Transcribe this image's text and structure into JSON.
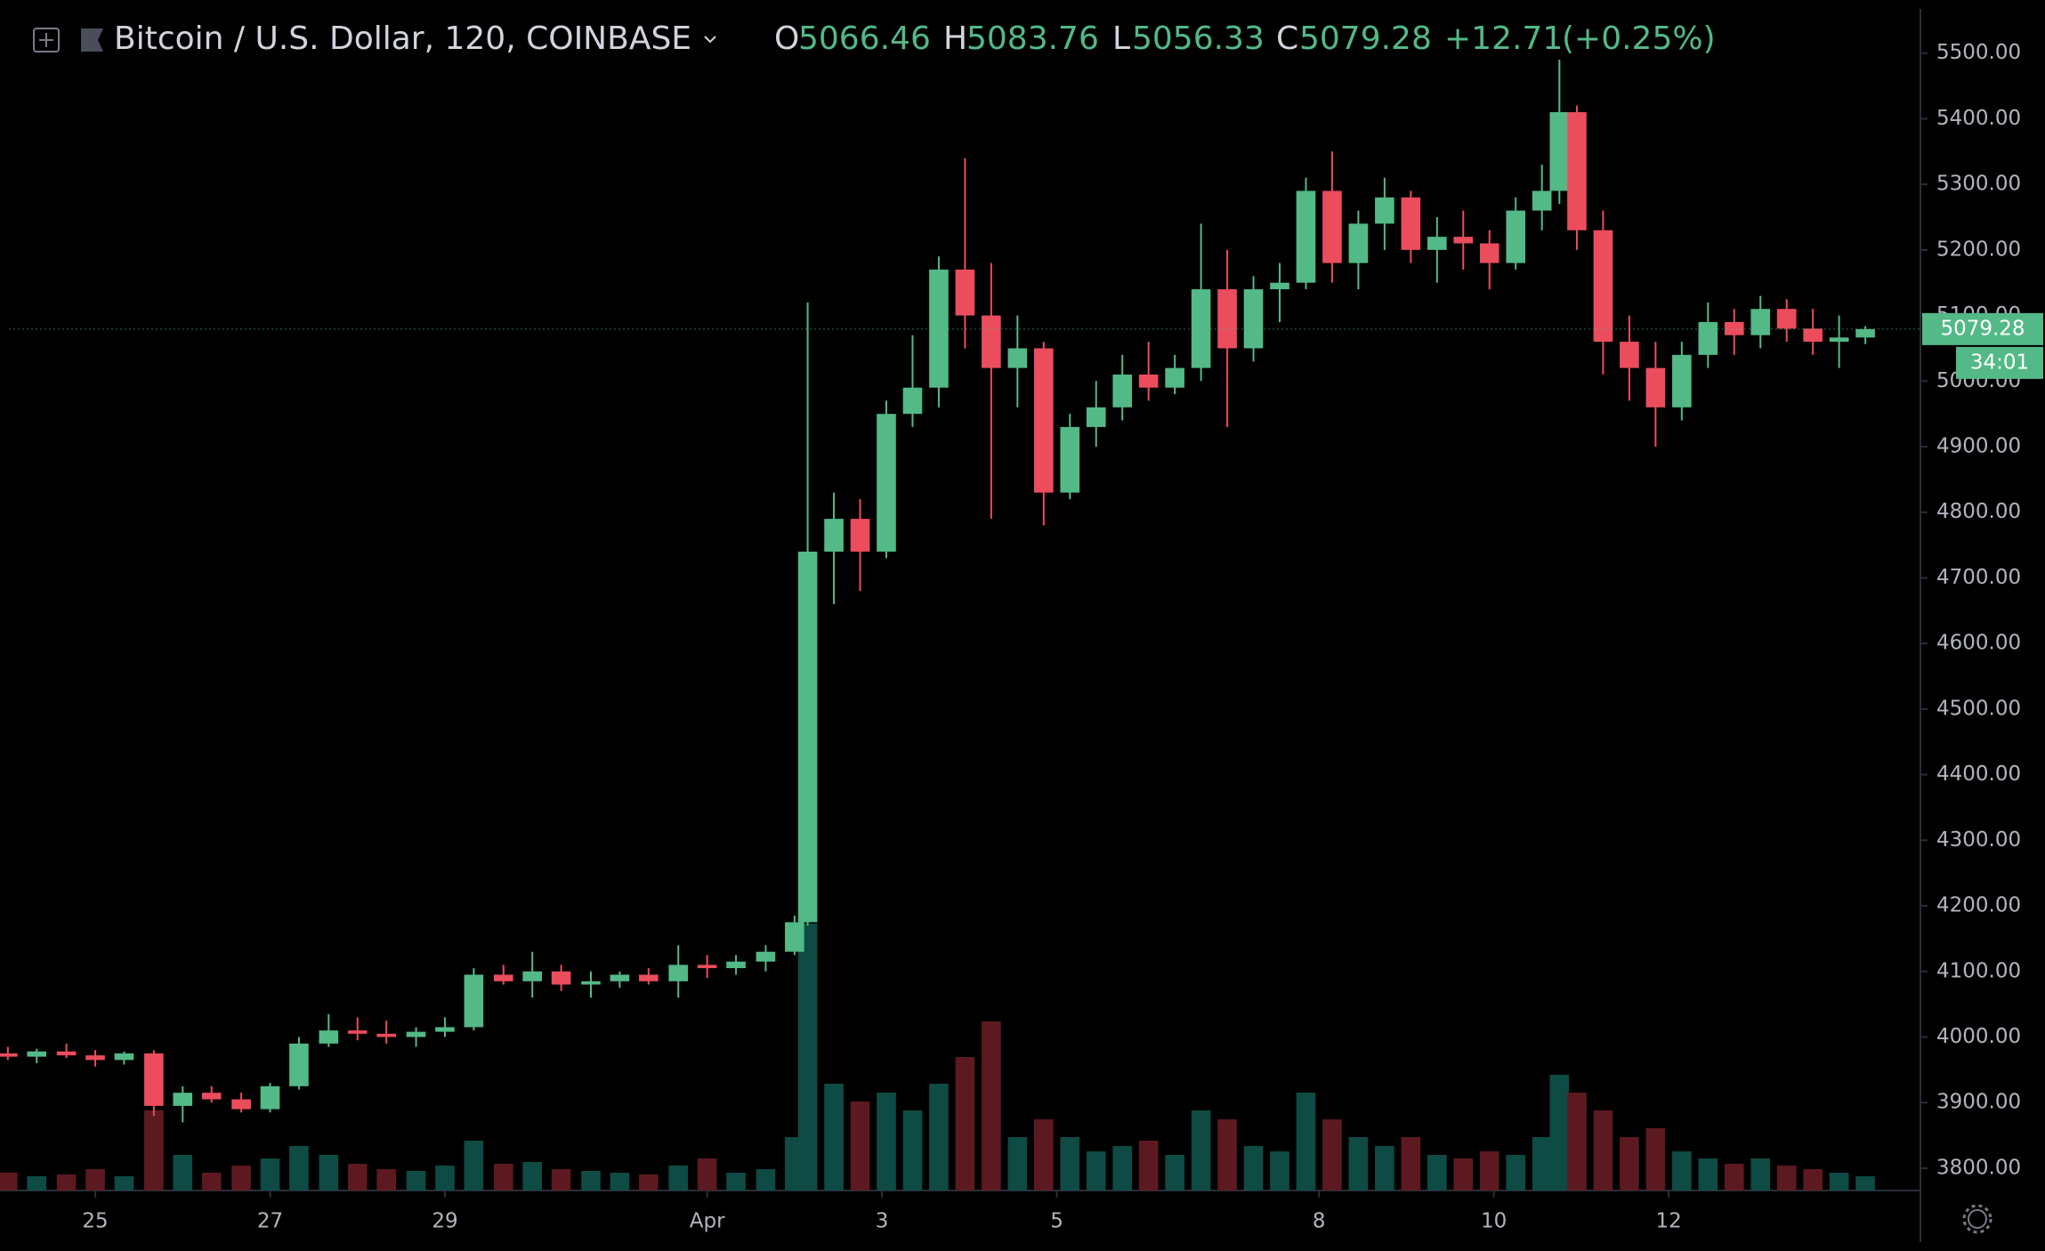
{
  "chart_data": {
    "type": "candlestick",
    "title": "Bitcoin / U.S. Dollar, 120, COINBASE",
    "header": {
      "open_label": "O",
      "open": 5066.46,
      "high_label": "H",
      "high": 5083.76,
      "low_label": "L",
      "low": 5056.33,
      "close_label": "C",
      "close": 5079.28,
      "change": {
        "value": 12.71,
        "label": "+12.71"
      },
      "change_pct": {
        "value": 0.25,
        "label": "(+0.25%)"
      }
    },
    "last_price": 5079.28,
    "countdown": "34:01",
    "up_color": "#53b987",
    "down_color": "#eb4d5c",
    "up_volume_color": "#0e4b44",
    "down_volume_color": "#5c1a20",
    "grid": false,
    "x": [
      -1.0,
      -0.67,
      -0.33,
      0.0,
      0.33,
      0.67,
      1.0,
      1.33,
      1.67,
      2.0,
      2.33,
      2.67,
      3.0,
      3.33,
      3.67,
      4.0,
      4.33,
      4.67,
      5.0,
      5.33,
      5.67,
      6.0,
      6.33,
      6.67,
      7.0,
      7.33,
      7.67,
      8.0,
      8.15,
      8.45,
      8.75,
      9.05,
      9.35,
      9.65,
      9.95,
      10.25,
      10.55,
      10.85,
      11.15,
      11.45,
      11.75,
      12.05,
      12.35,
      12.65,
      12.95,
      13.25,
      13.55,
      13.85,
      14.15,
      14.45,
      14.75,
      15.05,
      15.35,
      15.65,
      15.95,
      16.25,
      16.55,
      16.75,
      16.95,
      17.25,
      17.55,
      17.85,
      18.15,
      18.45,
      18.75,
      19.05,
      19.35,
      19.65,
      19.95,
      20.25
    ],
    "open": [
      3975,
      3970,
      3978,
      3972,
      3965,
      3975,
      3895,
      3915,
      3905,
      3890,
      3925,
      3990,
      4010,
      4005,
      4000,
      4008,
      4015,
      4095,
      4085,
      4100,
      4080,
      4085,
      4095,
      4085,
      4110,
      4105,
      4115,
      4130,
      4175,
      4740,
      4790,
      4740,
      4950,
      4990,
      5170,
      5100,
      5020,
      5050,
      4830,
      4930,
      4960,
      5010,
      4990,
      5020,
      5140,
      5050,
      5140,
      5150,
      5290,
      5180,
      5240,
      5280,
      5200,
      5220,
      5210,
      5180,
      5260,
      5290,
      5410,
      5230,
      5060,
      5020,
      4960,
      5040,
      5090,
      5070,
      5110,
      5080,
      5060,
      5066.46
    ],
    "high": [
      3985,
      3982,
      3990,
      3980,
      3978,
      3980,
      3925,
      3925,
      3915,
      3930,
      4000,
      4035,
      4030,
      4025,
      4015,
      4030,
      4105,
      4110,
      4130,
      4110,
      4100,
      4100,
      4105,
      4140,
      4125,
      4125,
      4140,
      4185,
      5120,
      4830,
      4820,
      4970,
      5070,
      5190,
      5340,
      5180,
      5100,
      5060,
      4950,
      5000,
      5040,
      5060,
      5040,
      5240,
      5200,
      5160,
      5180,
      5310,
      5350,
      5260,
      5310,
      5290,
      5250,
      5260,
      5230,
      5280,
      5330,
      5490,
      5420,
      5260,
      5100,
      5060,
      5060,
      5120,
      5110,
      5130,
      5125,
      5110,
      5100,
      5083.76
    ],
    "low": [
      3965,
      3960,
      3968,
      3955,
      3958,
      3880,
      3870,
      3900,
      3885,
      3885,
      3920,
      3985,
      3995,
      3990,
      3985,
      4000,
      4010,
      4080,
      4060,
      4070,
      4060,
      4075,
      4080,
      4060,
      4090,
      4095,
      4100,
      4125,
      4170,
      4660,
      4680,
      4730,
      4930,
      4960,
      5050,
      4790,
      4960,
      4780,
      4820,
      4900,
      4940,
      4970,
      4980,
      5000,
      4930,
      5030,
      5090,
      5140,
      5150,
      5140,
      5200,
      5180,
      5150,
      5170,
      5140,
      5170,
      5230,
      5270,
      5200,
      5010,
      4970,
      4900,
      4940,
      5020,
      5040,
      5050,
      5060,
      5040,
      5020,
      5056.33
    ],
    "close": [
      3970,
      3978,
      3972,
      3965,
      3975,
      3895,
      3915,
      3905,
      3890,
      3925,
      3990,
      4010,
      4005,
      4000,
      4008,
      4015,
      4095,
      4085,
      4100,
      4080,
      4085,
      4095,
      4085,
      4110,
      4105,
      4115,
      4130,
      4175,
      4740,
      4790,
      4740,
      4950,
      4990,
      5170,
      5100,
      5020,
      5050,
      4830,
      4930,
      4960,
      5010,
      4990,
      5020,
      5140,
      5050,
      5140,
      5150,
      5290,
      5180,
      5240,
      5280,
      5200,
      5220,
      5210,
      5180,
      5260,
      5290,
      5410,
      5230,
      5060,
      5020,
      4960,
      5040,
      5090,
      5070,
      5110,
      5080,
      5060,
      5066.46,
      5079.28
    ],
    "volume": [
      10,
      8,
      9,
      12,
      8,
      45,
      20,
      10,
      14,
      18,
      25,
      20,
      15,
      12,
      11,
      14,
      28,
      15,
      16,
      12,
      11,
      10,
      9,
      14,
      18,
      10,
      12,
      30,
      150,
      60,
      50,
      55,
      45,
      60,
      75,
      95,
      30,
      40,
      30,
      22,
      25,
      28,
      20,
      45,
      40,
      25,
      22,
      55,
      40,
      30,
      25,
      30,
      20,
      18,
      22,
      20,
      30,
      65,
      55,
      45,
      30,
      35,
      22,
      18,
      15,
      18,
      14,
      12,
      10,
      8
    ],
    "xlim": [
      -1.09,
      20.88
    ],
    "xticks": [
      {
        "value": 0,
        "label": "25"
      },
      {
        "value": 2,
        "label": "27"
      },
      {
        "value": 4,
        "label": "29"
      },
      {
        "value": 7,
        "label": "Apr"
      },
      {
        "value": 9,
        "label": "3"
      },
      {
        "value": 11,
        "label": "5"
      },
      {
        "value": 14,
        "label": "8"
      },
      {
        "value": 16,
        "label": "10"
      },
      {
        "value": 18,
        "label": "12"
      }
    ],
    "ylim": [
      3766,
      5581
    ],
    "yticks": [
      {
        "value": 3800,
        "label": "3800.00"
      },
      {
        "value": 3900,
        "label": "3900.00"
      },
      {
        "value": 4000,
        "label": "4000.00"
      },
      {
        "value": 4100,
        "label": "4100.00"
      },
      {
        "value": 4200,
        "label": "4200.00"
      },
      {
        "value": 4300,
        "label": "4300.00"
      },
      {
        "value": 4400,
        "label": "4400.00"
      },
      {
        "value": 4500,
        "label": "4500.00"
      },
      {
        "value": 4600,
        "label": "4600.00"
      },
      {
        "value": 4700,
        "label": "4700.00"
      },
      {
        "value": 4800,
        "label": "4800.00"
      },
      {
        "value": 4900,
        "label": "4900.00"
      },
      {
        "value": 5000,
        "label": "5000.00"
      },
      {
        "value": 5100,
        "label": "5100.00"
      },
      {
        "value": 5200,
        "label": "5200.00"
      },
      {
        "value": 5300,
        "label": "5300.00"
      },
      {
        "value": 5400,
        "label": "5400.00"
      },
      {
        "value": 5500,
        "label": "5500.00"
      }
    ]
  }
}
